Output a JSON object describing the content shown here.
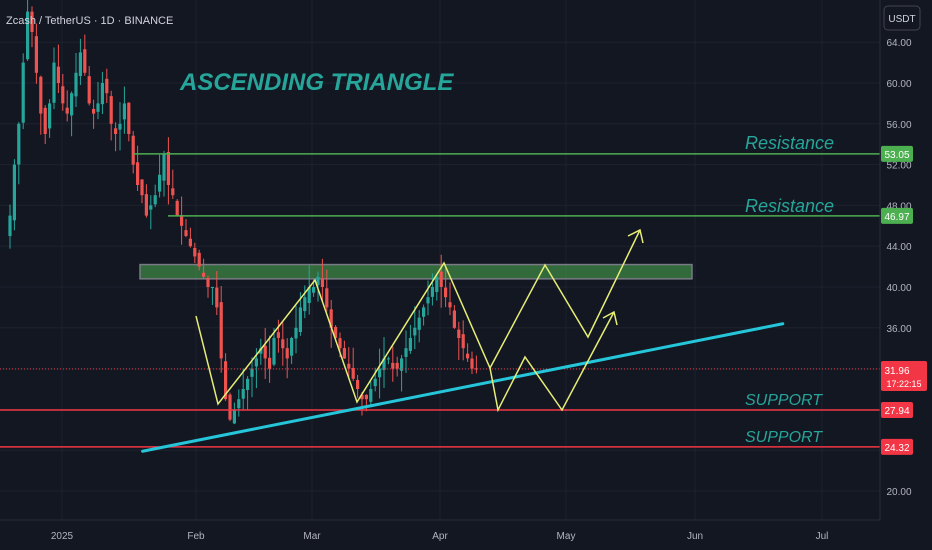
{
  "header": {
    "symbol_line": "Zcash / TetherUS · 1D · BINANCE",
    "currency_button": "USDT"
  },
  "annotations": {
    "pattern_title": "ASCENDING TRIANGLE",
    "resistance_1": "Resistance",
    "resistance_2": "Resistance",
    "support_1": "SUPPORT",
    "support_2": "SUPPORT"
  },
  "price_scale": {
    "ticks": [
      "64.00",
      "60.00",
      "56.00",
      "52.00",
      "48.00",
      "44.00",
      "40.00",
      "36.00",
      "32.00",
      "28.00",
      "24.00",
      "20.00"
    ],
    "tags": [
      {
        "label": "53.05",
        "value": 53.05,
        "color": "#4caf50"
      },
      {
        "label": "46.97",
        "value": 46.97,
        "color": "#4caf50"
      },
      {
        "label": "27.94",
        "value": 27.94,
        "color": "#f23645"
      },
      {
        "label": "24.32",
        "value": 24.32,
        "color": "#f23645"
      }
    ],
    "last_price": {
      "label": "31.96",
      "value": 31.96,
      "countdown": "17:22:15",
      "color": "#f23645"
    }
  },
  "time_axis": {
    "labels": [
      "2025",
      "Feb",
      "Mar",
      "Apr",
      "May",
      "Jun",
      "Jul"
    ]
  },
  "colors": {
    "background": "#131722",
    "up": "#26a69a",
    "down": "#ef5350",
    "resistance": "#4caf50",
    "support": "#f23645",
    "trendline": "#26c6da",
    "projection": "#e6ee75",
    "title": "#26a69a"
  },
  "chart_data": {
    "type": "candlestick",
    "title": "Zcash / TetherUS · 1D · BINANCE",
    "ylim": [
      18,
      68
    ],
    "levels": {
      "resistance": [
        53.05,
        46.97
      ],
      "support": [
        27.94,
        24.32
      ],
      "resistance_zone": [
        40.8,
        42.2
      ]
    },
    "trendline": {
      "from": {
        "date": "2025-01-20",
        "value": 23.9
      },
      "to": {
        "date": "2025-06-20",
        "value": 36.4
      }
    },
    "closes": [
      47,
      52,
      56,
      62,
      67,
      65,
      61,
      57,
      55,
      58,
      62,
      60,
      58,
      57,
      59,
      61,
      63,
      61,
      58,
      57,
      58,
      60,
      59,
      56,
      55,
      56,
      58,
      55,
      52,
      50,
      49,
      47,
      48,
      49,
      51,
      53,
      50,
      49,
      47,
      46,
      45,
      44,
      43,
      42,
      41,
      40,
      40,
      38,
      33,
      29,
      27,
      28,
      29,
      30,
      31,
      32,
      33,
      34,
      33,
      32,
      35,
      35,
      34,
      33,
      35,
      36,
      38,
      39,
      40,
      40,
      41,
      40,
      38,
      36,
      35,
      34,
      33,
      32,
      31,
      30,
      29,
      29,
      30,
      31,
      32,
      33,
      33,
      32,
      32,
      33,
      34,
      35,
      36,
      37,
      38,
      39,
      40,
      41,
      40,
      39,
      38,
      36,
      35,
      34,
      33,
      32,
      32
    ]
  }
}
